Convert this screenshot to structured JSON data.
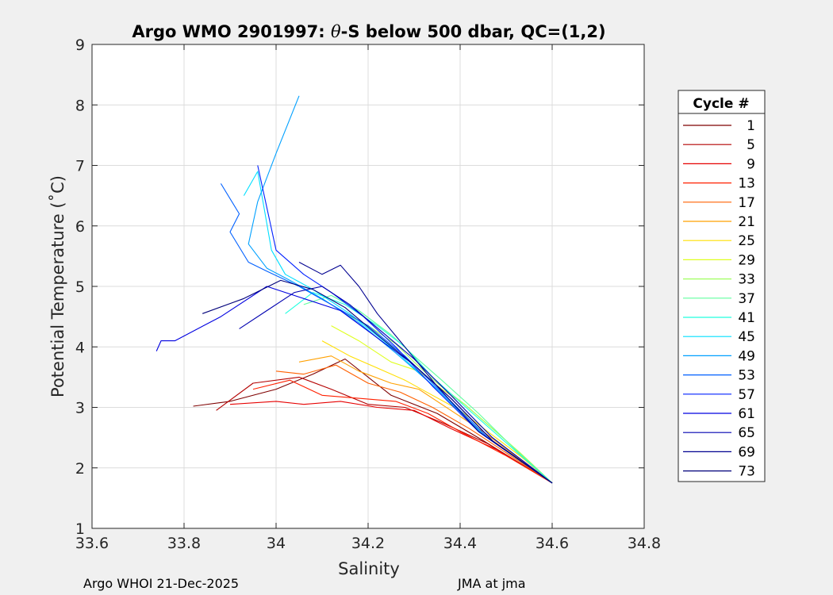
{
  "chart_data": {
    "type": "line",
    "title_prefix": "Argo WMO 2901997: ",
    "title_theta": "θ",
    "title_suffix": "-S below 500 dbar,  QC=(1,2)",
    "xlabel": "Salinity",
    "ylabel": "Potential Temperature (˚C)",
    "xlim": [
      33.6,
      34.8
    ],
    "ylim": [
      1,
      9
    ],
    "xticks": [
      33.6,
      33.8,
      34,
      34.2,
      34.4,
      34.6,
      34.8
    ],
    "xtick_labels": [
      "33.6",
      "33.8",
      "34",
      "34.2",
      "34.4",
      "34.6",
      "34.8"
    ],
    "yticks": [
      1,
      2,
      3,
      4,
      5,
      6,
      7,
      8,
      9
    ],
    "ytick_labels": [
      "1",
      "2",
      "3",
      "4",
      "5",
      "6",
      "7",
      "8",
      "9"
    ],
    "grid": true,
    "legend": {
      "title": "Cycle #",
      "placement": "outside-right",
      "entries": [
        {
          "label": "1",
          "color": "#7f0000"
        },
        {
          "label": "5",
          "color": "#b30000"
        },
        {
          "label": "9",
          "color": "#e60000"
        },
        {
          "label": "13",
          "color": "#ff2000"
        },
        {
          "label": "17",
          "color": "#ff6000"
        },
        {
          "label": "21",
          "color": "#ffa000"
        },
        {
          "label": "25",
          "color": "#ffdf00"
        },
        {
          "label": "29",
          "color": "#dfff20"
        },
        {
          "label": "33",
          "color": "#9fff60"
        },
        {
          "label": "37",
          "color": "#60ff9f"
        },
        {
          "label": "41",
          "color": "#20ffdf"
        },
        {
          "label": "45",
          "color": "#00dfff"
        },
        {
          "label": "49",
          "color": "#00a0ff"
        },
        {
          "label": "53",
          "color": "#0060ff"
        },
        {
          "label": "57",
          "color": "#0020ff"
        },
        {
          "label": "61",
          "color": "#0000e0"
        },
        {
          "label": "65",
          "color": "#0000b0"
        },
        {
          "label": "69",
          "color": "#000090"
        },
        {
          "label": "73",
          "color": "#00007a"
        }
      ]
    },
    "series": [
      {
        "name": "1",
        "color": "#7f0000",
        "x": [
          33.82,
          33.9,
          34.0,
          34.08,
          34.15,
          34.25,
          34.35,
          34.45,
          34.6
        ],
        "y": [
          3.02,
          3.1,
          3.3,
          3.55,
          3.8,
          3.2,
          2.9,
          2.45,
          1.75
        ]
      },
      {
        "name": "5",
        "color": "#b30000",
        "x": [
          33.87,
          33.95,
          34.05,
          34.12,
          34.2,
          34.28,
          34.36,
          34.46,
          34.6
        ],
        "y": [
          2.95,
          3.4,
          3.5,
          3.3,
          3.05,
          3.0,
          2.75,
          2.4,
          1.75
        ]
      },
      {
        "name": "9",
        "color": "#e60000",
        "x": [
          33.9,
          34.0,
          34.06,
          34.14,
          34.22,
          34.3,
          34.38,
          34.48,
          34.6
        ],
        "y": [
          3.05,
          3.1,
          3.05,
          3.1,
          3.0,
          2.95,
          2.65,
          2.3,
          1.75
        ]
      },
      {
        "name": "13",
        "color": "#ff2000",
        "x": [
          33.95,
          34.03,
          34.1,
          34.18,
          34.26,
          34.33,
          34.4,
          34.5,
          34.6
        ],
        "y": [
          3.3,
          3.45,
          3.2,
          3.15,
          3.1,
          2.9,
          2.6,
          2.2,
          1.75
        ]
      },
      {
        "name": "17",
        "color": "#ff6000",
        "x": [
          34.0,
          34.06,
          34.13,
          34.2,
          34.27,
          34.34,
          34.42,
          34.51,
          34.6
        ],
        "y": [
          3.6,
          3.55,
          3.7,
          3.4,
          3.25,
          3.0,
          2.65,
          2.2,
          1.75
        ]
      },
      {
        "name": "21",
        "color": "#ffa000",
        "x": [
          34.05,
          34.12,
          34.18,
          34.25,
          34.31,
          34.38,
          34.45,
          34.52,
          34.6
        ],
        "y": [
          3.75,
          3.85,
          3.6,
          3.4,
          3.3,
          2.95,
          2.6,
          2.2,
          1.75
        ]
      },
      {
        "name": "25",
        "color": "#ffdf00",
        "x": [
          34.1,
          34.16,
          34.22,
          34.28,
          34.34,
          34.4,
          34.46,
          34.53,
          34.6
        ],
        "y": [
          4.1,
          3.85,
          3.65,
          3.45,
          3.2,
          2.95,
          2.6,
          2.2,
          1.75
        ]
      },
      {
        "name": "29",
        "color": "#dfff20",
        "x": [
          34.12,
          34.18,
          34.25,
          34.31,
          34.36,
          34.41,
          34.47,
          34.53,
          34.6
        ],
        "y": [
          4.35,
          4.1,
          3.75,
          3.6,
          3.3,
          3.05,
          2.65,
          2.25,
          1.75
        ]
      },
      {
        "name": "33",
        "color": "#9fff60",
        "x": [
          34.15,
          34.2,
          34.26,
          34.3,
          34.35,
          34.41,
          34.47,
          34.53,
          34.6
        ],
        "y": [
          4.55,
          4.35,
          4.05,
          3.75,
          3.4,
          3.05,
          2.65,
          2.25,
          1.75
        ]
      },
      {
        "name": "37",
        "color": "#60ff9f",
        "x": [
          34.06,
          34.12,
          34.18,
          34.25,
          34.3,
          34.36,
          34.44,
          34.52,
          34.6
        ],
        "y": [
          4.7,
          4.85,
          4.6,
          4.2,
          3.85,
          3.45,
          2.9,
          2.3,
          1.75
        ]
      },
      {
        "name": "41",
        "color": "#20ffdf",
        "x": [
          34.02,
          34.08,
          34.15,
          34.22,
          34.28,
          34.34,
          34.42,
          34.51,
          34.6
        ],
        "y": [
          4.55,
          4.9,
          4.7,
          4.35,
          4.0,
          3.5,
          2.95,
          2.35,
          1.75
        ]
      },
      {
        "name": "45",
        "color": "#00dfff",
        "x": [
          33.93,
          33.96,
          33.99,
          34.02,
          34.08,
          34.16,
          34.25,
          34.35,
          34.45,
          34.6
        ],
        "y": [
          6.5,
          6.9,
          5.6,
          5.2,
          4.95,
          4.55,
          4.0,
          3.3,
          2.55,
          1.75
        ]
      },
      {
        "name": "49",
        "color": "#00a0ff",
        "x": [
          34.05,
          34.0,
          33.96,
          33.94,
          33.98,
          34.03,
          34.1,
          34.18,
          34.26,
          34.35,
          34.45,
          34.6
        ],
        "y": [
          8.15,
          7.2,
          6.4,
          5.7,
          5.3,
          5.1,
          4.8,
          4.4,
          3.9,
          3.3,
          2.55,
          1.75
        ]
      },
      {
        "name": "53",
        "color": "#0060ff",
        "x": [
          33.88,
          33.92,
          33.9,
          33.94,
          33.98,
          34.05,
          34.12,
          34.2,
          34.28,
          34.36,
          34.46,
          34.6
        ],
        "y": [
          6.7,
          6.2,
          5.9,
          5.4,
          5.25,
          5.0,
          4.7,
          4.35,
          3.85,
          3.25,
          2.5,
          1.75
        ]
      },
      {
        "name": "57",
        "color": "#0020ff",
        "x": [
          33.96,
          33.98,
          34.0,
          34.06,
          34.12,
          34.19,
          34.26,
          34.34,
          34.44,
          34.6
        ],
        "y": [
          7.0,
          6.3,
          5.6,
          5.2,
          4.9,
          4.5,
          4.0,
          3.35,
          2.6,
          1.75
        ]
      },
      {
        "name": "61",
        "color": "#0000e0",
        "x": [
          33.74,
          33.75,
          33.78,
          33.88,
          33.98,
          34.06,
          34.14,
          34.22,
          34.3,
          34.38,
          34.47,
          34.6
        ],
        "y": [
          3.93,
          4.1,
          4.1,
          4.5,
          5.0,
          4.8,
          4.6,
          4.15,
          3.7,
          3.15,
          2.45,
          1.75
        ]
      },
      {
        "name": "65",
        "color": "#0000b0",
        "x": [
          33.92,
          33.98,
          34.04,
          34.1,
          34.16,
          34.23,
          34.3,
          34.38,
          34.47,
          34.6
        ],
        "y": [
          4.3,
          4.6,
          4.9,
          5.0,
          4.7,
          4.25,
          3.8,
          3.2,
          2.5,
          1.75
        ]
      },
      {
        "name": "69",
        "color": "#000090",
        "x": [
          34.05,
          34.1,
          34.14,
          34.18,
          34.22,
          34.28,
          34.35,
          34.44,
          34.6
        ],
        "y": [
          5.4,
          5.2,
          5.35,
          5.0,
          4.55,
          4.0,
          3.35,
          2.6,
          1.75
        ]
      },
      {
        "name": "73",
        "color": "#00007a",
        "x": [
          33.84,
          33.93,
          34.01,
          34.08,
          34.15,
          34.22,
          34.3,
          34.38,
          34.47,
          34.6
        ],
        "y": [
          4.55,
          4.8,
          5.1,
          4.95,
          4.65,
          4.2,
          3.7,
          3.15,
          2.45,
          1.75
        ]
      }
    ]
  },
  "footer": {
    "left": "Argo WHOI 21-Dec-2025",
    "right": "JMA at jma"
  }
}
